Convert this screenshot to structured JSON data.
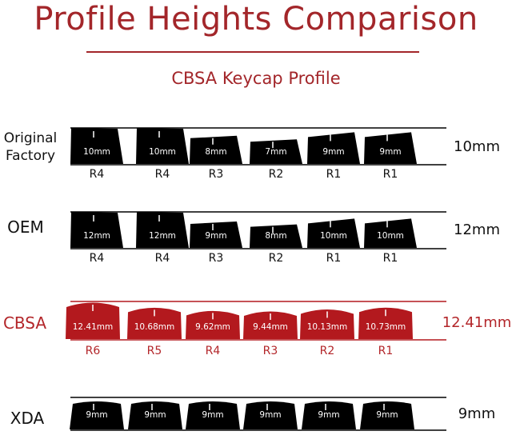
{
  "title": "Profile Heights Comparison",
  "subtitle": "CBSA Keycap Profile",
  "profiles": [
    {
      "id": "original-factory",
      "label_lines": [
        "Original",
        "Factory"
      ],
      "total": "10mm",
      "color": "#000000",
      "highlight": false,
      "shape": "sculpted",
      "keys": [
        {
          "height": "10mm",
          "h": 10,
          "row": "R4"
        },
        {
          "height": "10mm",
          "h": 10,
          "row": "R4"
        },
        {
          "height": "8mm",
          "h": 8,
          "row": "R3"
        },
        {
          "height": "7mm",
          "h": 7,
          "row": "R2"
        },
        {
          "height": "9mm",
          "h": 9,
          "row": "R1"
        },
        {
          "height": "9mm",
          "h": 9,
          "row": "R1"
        }
      ]
    },
    {
      "id": "oem",
      "label_lines": [
        "OEM"
      ],
      "total": "12mm",
      "color": "#000000",
      "highlight": false,
      "shape": "sculpted",
      "keys": [
        {
          "height": "12mm",
          "h": 12,
          "row": "R4"
        },
        {
          "height": "12mm",
          "h": 12,
          "row": "R4"
        },
        {
          "height": "9mm",
          "h": 9,
          "row": "R3"
        },
        {
          "height": "8mm",
          "h": 8,
          "row": "R2"
        },
        {
          "height": "10mm",
          "h": 10,
          "row": "R1"
        },
        {
          "height": "10mm",
          "h": 10,
          "row": "R1"
        }
      ]
    },
    {
      "id": "cbsa",
      "label_lines": [
        "CBSA"
      ],
      "total": "12.41mm",
      "color": "#b3191e",
      "highlight": true,
      "shape": "curved",
      "keys": [
        {
          "height": "12.41mm",
          "h": 12.41,
          "row": "R6"
        },
        {
          "height": "10.68mm",
          "h": 10.68,
          "row": "R5"
        },
        {
          "height": "9.62mm",
          "h": 9.62,
          "row": "R4"
        },
        {
          "height": "9.44mm",
          "h": 9.44,
          "row": "R3"
        },
        {
          "height": "10.13mm",
          "h": 10.13,
          "row": "R2"
        },
        {
          "height": "10.73mm",
          "h": 10.73,
          "row": "R1"
        }
      ]
    },
    {
      "id": "xda",
      "label_lines": [
        "XDA"
      ],
      "total": "9mm",
      "color": "#000000",
      "highlight": false,
      "shape": "flat",
      "keys": [
        {
          "height": "9mm",
          "h": 9,
          "row": ""
        },
        {
          "height": "9mm",
          "h": 9,
          "row": ""
        },
        {
          "height": "9mm",
          "h": 9,
          "row": ""
        },
        {
          "height": "9mm",
          "h": 9,
          "row": ""
        },
        {
          "height": "9mm",
          "h": 9,
          "row": ""
        },
        {
          "height": "9mm",
          "h": 9,
          "row": ""
        }
      ]
    }
  ]
}
